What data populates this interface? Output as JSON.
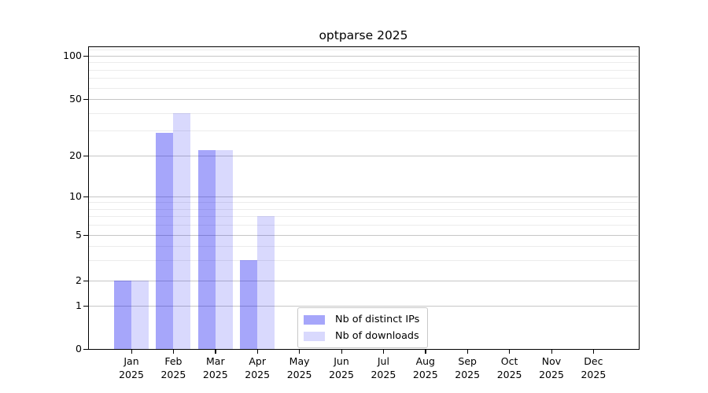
{
  "chart_data": {
    "type": "bar",
    "title": "optparse 2025",
    "categories": [
      "Jan 2025",
      "Feb 2025",
      "Mar 2025",
      "Apr 2025",
      "May 2025",
      "Jun 2025",
      "Jul 2025",
      "Aug 2025",
      "Sep 2025",
      "Oct 2025",
      "Nov 2025",
      "Dec 2025"
    ],
    "series": [
      {
        "name": "Nb of distinct IPs",
        "values": [
          2,
          29,
          22,
          3,
          0,
          0,
          0,
          0,
          0,
          0,
          0,
          0
        ],
        "color": "rgba(0,0,240,0.35)"
      },
      {
        "name": "Nb of downloads",
        "values": [
          2,
          40,
          22,
          7,
          0,
          0,
          0,
          0,
          0,
          0,
          0,
          0
        ],
        "color": "rgba(0,0,240,0.15)"
      }
    ],
    "xlabel": "",
    "ylabel": "",
    "yscale": "symlog",
    "ylim": [
      0,
      115
    ],
    "y_major_ticks": [
      0,
      1,
      2,
      5,
      10,
      20,
      50,
      100
    ],
    "y_minor_ticks": [
      3,
      4,
      6,
      7,
      8,
      9,
      30,
      40,
      60,
      70,
      80,
      90,
      110
    ],
    "grid": "horizontal",
    "legend_position": "inside-bottom-center"
  },
  "colors": {
    "grid_major": "#c6c6c6",
    "grid_minor": "#ececec",
    "axis": "#000000",
    "text": "#000000"
  }
}
